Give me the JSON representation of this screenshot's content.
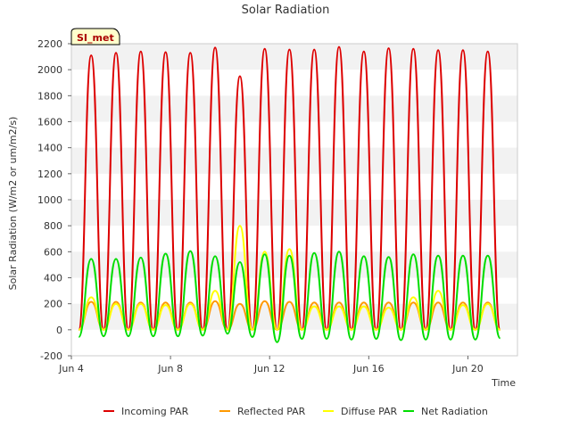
{
  "chart_data": {
    "type": "line",
    "title": "Solar Radiation",
    "xlabel": "Time",
    "ylabel": "Solar Radiation (W/m2 or um/m2/s)",
    "ylim": [
      -200,
      2200
    ],
    "yticks": [
      -200,
      0,
      200,
      400,
      600,
      800,
      1000,
      1200,
      1400,
      1600,
      1800,
      2000,
      2200
    ],
    "xlim": [
      4.0,
      22.0
    ],
    "xticks": [
      {
        "value": 4,
        "label": "Jun 4"
      },
      {
        "value": 8,
        "label": "Jun 8"
      },
      {
        "value": 12,
        "label": "Jun 12"
      },
      {
        "value": 16,
        "label": "Jun 16"
      },
      {
        "value": 20,
        "label": "Jun 20"
      }
    ],
    "x_unit": "day of June (2 points per day: solar noon and midnight)",
    "grid": "horizontal bands",
    "legend_position": "bottom",
    "site_badge": "SI_met",
    "series": [
      {
        "name": "Incoming PAR",
        "color": "#dd0000",
        "x": [
          4.3,
          4.8,
          5.3,
          5.8,
          6.3,
          6.8,
          7.3,
          7.8,
          8.3,
          8.8,
          9.3,
          9.8,
          10.3,
          10.8,
          11.3,
          11.8,
          12.3,
          12.8,
          13.3,
          13.8,
          14.3,
          14.8,
          15.3,
          15.8,
          16.3,
          16.8,
          17.3,
          17.8,
          18.3,
          18.8,
          19.3,
          19.8,
          20.3,
          20.8,
          21.3
        ],
        "values": [
          0,
          2110,
          0,
          2130,
          0,
          2140,
          0,
          2135,
          0,
          2130,
          0,
          2170,
          0,
          1950,
          0,
          2160,
          0,
          2155,
          0,
          2155,
          0,
          2175,
          0,
          2140,
          0,
          2165,
          0,
          2160,
          0,
          2150,
          0,
          2150,
          0,
          2140,
          0
        ]
      },
      {
        "name": "Reflected PAR",
        "color": "#ff9900",
        "x": [
          4.3,
          4.8,
          5.3,
          5.8,
          6.3,
          6.8,
          7.3,
          7.8,
          8.3,
          8.8,
          9.3,
          9.8,
          10.3,
          10.8,
          11.3,
          11.8,
          12.3,
          12.8,
          13.3,
          13.8,
          14.3,
          14.8,
          15.3,
          15.8,
          16.3,
          16.8,
          17.3,
          17.8,
          18.3,
          18.8,
          19.3,
          19.8,
          20.3,
          20.8,
          21.3
        ],
        "values": [
          0,
          215,
          0,
          215,
          0,
          210,
          0,
          210,
          0,
          210,
          0,
          220,
          0,
          200,
          0,
          220,
          0,
          215,
          0,
          210,
          0,
          210,
          0,
          210,
          0,
          210,
          0,
          210,
          0,
          210,
          0,
          210,
          0,
          210,
          0
        ]
      },
      {
        "name": "Diffuse PAR",
        "color": "#ffff00",
        "x": [
          4.3,
          4.8,
          5.3,
          5.8,
          6.3,
          6.8,
          7.3,
          7.8,
          8.3,
          8.8,
          9.3,
          9.8,
          10.3,
          10.8,
          11.3,
          11.8,
          12.3,
          12.8,
          13.3,
          13.8,
          14.3,
          14.8,
          15.3,
          15.8,
          16.3,
          16.8,
          17.3,
          17.8,
          18.3,
          18.8,
          19.3,
          19.8,
          20.3,
          20.8,
          21.3
        ],
        "values": [
          0,
          250,
          0,
          200,
          0,
          200,
          0,
          190,
          0,
          200,
          0,
          300,
          0,
          800,
          0,
          600,
          0,
          620,
          0,
          180,
          0,
          180,
          0,
          180,
          0,
          170,
          0,
          250,
          0,
          300,
          0,
          190,
          0,
          200,
          0
        ]
      },
      {
        "name": "Net Radiation",
        "color": "#00dd00",
        "x": [
          4.3,
          4.8,
          5.3,
          5.8,
          6.3,
          6.8,
          7.3,
          7.8,
          8.3,
          8.8,
          9.3,
          9.8,
          10.3,
          10.8,
          11.3,
          11.8,
          12.3,
          12.8,
          13.3,
          13.8,
          14.3,
          14.8,
          15.3,
          15.8,
          16.3,
          16.8,
          17.3,
          17.8,
          18.3,
          18.8,
          19.3,
          19.8,
          20.3,
          20.8,
          21.3
        ],
        "values": [
          -55,
          545,
          -50,
          545,
          -50,
          555,
          -50,
          585,
          -50,
          605,
          -45,
          565,
          -30,
          520,
          -55,
          580,
          -95,
          570,
          -70,
          590,
          -70,
          600,
          -75,
          565,
          -70,
          560,
          -80,
          580,
          -75,
          570,
          -75,
          570,
          -75,
          570,
          -65
        ]
      }
    ]
  }
}
